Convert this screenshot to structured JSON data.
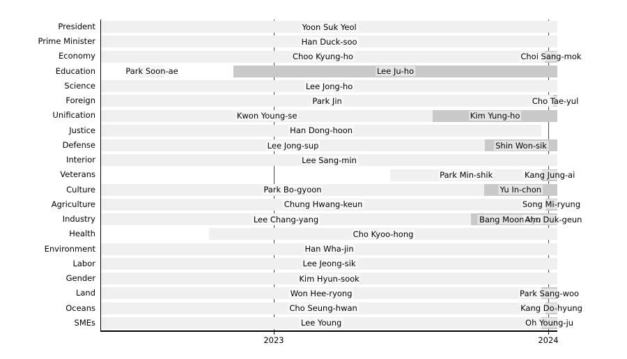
{
  "chart_data": {
    "type": "bar",
    "variant": "gantt-timeline",
    "title": "",
    "xlabel": "",
    "ylabel": "",
    "legend": "none",
    "grid": "vertical year gridlines drawn behind bars (appear dashed in row gaps)",
    "x_axis": {
      "min": 2022.3706,
      "max": 2024.033,
      "ticks": [
        {
          "value": 2023,
          "label": "2023"
        },
        {
          "value": 2024,
          "label": "2024"
        }
      ]
    },
    "colors": {
      "background": "#ffffff",
      "bar_light": "#f0f0f0",
      "bar_dark": "#c9c9c9",
      "grid_line": "#4a4a4a",
      "axis": "#000000",
      "label_halo": "rgba(255,255,255,0.5)"
    },
    "categories": [
      "President",
      "Prime Minister",
      "Economy",
      "Education",
      "Science",
      "Foreign",
      "Unification",
      "Justice",
      "Defense",
      "Interior",
      "Veterans",
      "Culture",
      "Agriculture",
      "Industry",
      "Health",
      "Environment",
      "Labor",
      "Gender",
      "Land",
      "Oceans",
      "SMEs"
    ],
    "rows": [
      {
        "category": "President",
        "segments": [
          {
            "name": "Yoon Suk Yeol",
            "start": 2022.371,
            "end": 2024.033,
            "shade": "light"
          }
        ]
      },
      {
        "category": "Prime Minister",
        "segments": [
          {
            "name": "Han Duck-soo",
            "start": 2022.371,
            "end": 2024.033,
            "shade": "light"
          }
        ]
      },
      {
        "category": "Economy",
        "segments": [
          {
            "name": "Choo Kyung-ho",
            "start": 2022.371,
            "end": 2023.987,
            "shade": "light"
          },
          {
            "name": "Choi Sang-mok",
            "start": 2023.987,
            "end": 2024.033,
            "shade": "dark"
          }
        ]
      },
      {
        "category": "Education",
        "segments": [
          {
            "name": "Park Soon-ae",
            "start": 2022.51,
            "end": 2022.602,
            "shade": "light"
          },
          {
            "name": "Lee Ju-ho",
            "start": 2022.853,
            "end": 2024.033,
            "shade": "dark"
          }
        ]
      },
      {
        "category": "Science",
        "segments": [
          {
            "name": "Lee Jong-ho",
            "start": 2022.371,
            "end": 2024.033,
            "shade": "light"
          }
        ]
      },
      {
        "category": "Foreign",
        "segments": [
          {
            "name": "Park Jin",
            "start": 2022.371,
            "end": 2024.018,
            "shade": "light"
          },
          {
            "name": "Cho Tae-yul",
            "start": 2024.018,
            "end": 2024.033,
            "shade": "dark"
          }
        ]
      },
      {
        "category": "Unification",
        "segments": [
          {
            "name": "Kwon Young-se",
            "start": 2022.371,
            "end": 2023.579,
            "shade": "light"
          },
          {
            "name": "Kim Yung-ho",
            "start": 2023.579,
            "end": 2024.033,
            "shade": "dark"
          }
        ]
      },
      {
        "category": "Justice",
        "segments": [
          {
            "name": "Han Dong-hoon",
            "start": 2022.371,
            "end": 2023.975,
            "shade": "light"
          }
        ]
      },
      {
        "category": "Defense",
        "segments": [
          {
            "name": "Lee Jong-sup",
            "start": 2022.371,
            "end": 2023.769,
            "shade": "light"
          },
          {
            "name": "Shin Won-sik",
            "start": 2023.769,
            "end": 2024.033,
            "shade": "dark"
          }
        ]
      },
      {
        "category": "Interior",
        "segments": [
          {
            "name": "Lee Sang-min",
            "start": 2022.371,
            "end": 2024.033,
            "shade": "light"
          }
        ]
      },
      {
        "category": "Veterans",
        "segments": [
          {
            "name": "Park Min-shik",
            "start": 2023.424,
            "end": 2023.978,
            "shade": "light"
          },
          {
            "name": "Kang Jung-ai",
            "start": 2023.978,
            "end": 2024.033,
            "shade": "dark"
          }
        ]
      },
      {
        "category": "Culture",
        "segments": [
          {
            "name": "Park Bo-gyoon",
            "start": 2022.371,
            "end": 2023.766,
            "shade": "light"
          },
          {
            "name": "Yu In-chon",
            "start": 2023.766,
            "end": 2024.033,
            "shade": "dark"
          }
        ]
      },
      {
        "category": "Agriculture",
        "segments": [
          {
            "name": "Chung Hwang-keun",
            "start": 2022.371,
            "end": 2023.99,
            "shade": "light"
          },
          {
            "name": "Song Mi-ryung",
            "start": 2023.99,
            "end": 2024.033,
            "shade": "dark"
          }
        ]
      },
      {
        "category": "Industry",
        "segments": [
          {
            "name": "Lee Chang-yang",
            "start": 2022.371,
            "end": 2023.718,
            "shade": "light"
          },
          {
            "name": "Bang Moon-kyu",
            "start": 2023.718,
            "end": 2024.005,
            "shade": "dark"
          },
          {
            "name": "Ahn Duk-geun",
            "start": 2024.005,
            "end": 2024.033,
            "shade": "dark"
          }
        ]
      },
      {
        "category": "Health",
        "segments": [
          {
            "name": "Cho Kyoo-hong",
            "start": 2022.764,
            "end": 2024.033,
            "shade": "light"
          }
        ]
      },
      {
        "category": "Environment",
        "segments": [
          {
            "name": "Han Wha-jin",
            "start": 2022.371,
            "end": 2024.033,
            "shade": "light"
          }
        ]
      },
      {
        "category": "Labor",
        "segments": [
          {
            "name": "Lee Jeong-sik",
            "start": 2022.371,
            "end": 2024.033,
            "shade": "light"
          }
        ]
      },
      {
        "category": "Gender",
        "segments": [
          {
            "name": "Kim Hyun-sook",
            "start": 2022.371,
            "end": 2024.033,
            "shade": "light"
          }
        ]
      },
      {
        "category": "Land",
        "segments": [
          {
            "name": "Won Hee-ryong",
            "start": 2022.371,
            "end": 2023.975,
            "shade": "light"
          },
          {
            "name": "Park Sang-woo",
            "start": 2023.975,
            "end": 2024.033,
            "shade": "dark"
          }
        ]
      },
      {
        "category": "Oceans",
        "segments": [
          {
            "name": "Cho Seung-hwan",
            "start": 2022.371,
            "end": 2023.99,
            "shade": "light"
          },
          {
            "name": "Kang Do-hyung",
            "start": 2023.99,
            "end": 2024.033,
            "shade": "dark"
          }
        ]
      },
      {
        "category": "SMEs",
        "segments": [
          {
            "name": "Lee Young",
            "start": 2022.371,
            "end": 2023.975,
            "shade": "light"
          },
          {
            "name": "Oh Young-ju",
            "start": 2023.975,
            "end": 2024.033,
            "shade": "dark"
          }
        ]
      }
    ]
  }
}
